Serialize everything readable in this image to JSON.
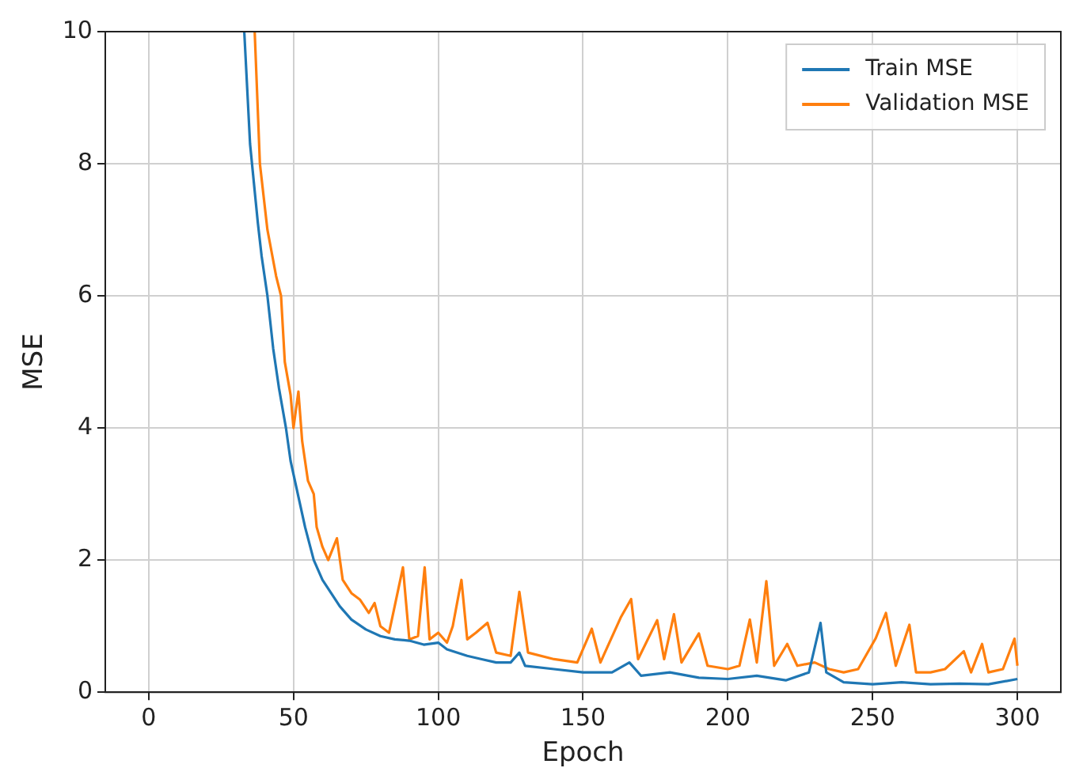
{
  "chart_data": {
    "type": "line",
    "xlabel": "Epoch",
    "ylabel": "MSE",
    "xlim": [
      -15,
      315
    ],
    "ylim": [
      0,
      10
    ],
    "xticks": [
      0,
      50,
      100,
      150,
      200,
      250,
      300
    ],
    "yticks": [
      0,
      2,
      4,
      6,
      8,
      10
    ],
    "grid": true,
    "legend": "top right",
    "marker": "none",
    "line_style": "solid",
    "series": [
      {
        "name": "Train MSE",
        "color": "#1f77b4",
        "x": [
          33,
          35,
          37.7,
          39,
          41,
          43,
          45,
          47.4,
          49,
          51,
          54,
          57,
          60,
          63,
          66,
          70,
          75,
          80,
          85,
          90,
          95,
          100,
          103,
          110,
          115,
          120,
          125,
          128,
          130,
          140,
          150,
          160,
          166,
          170,
          180,
          190,
          200,
          210,
          220,
          228,
          232,
          234,
          240,
          250,
          260,
          270,
          280,
          290,
          300
        ],
        "values": [
          10,
          8.3,
          7.1,
          6.6,
          6,
          5.2,
          4.6,
          4,
          3.5,
          3.1,
          2.5,
          2,
          1.7,
          1.5,
          1.3,
          1.1,
          0.95,
          0.85,
          0.8,
          0.78,
          0.72,
          0.75,
          0.65,
          0.55,
          0.5,
          0.45,
          0.45,
          0.6,
          0.4,
          0.35,
          0.3,
          0.3,
          0.45,
          0.25,
          0.3,
          0.22,
          0.2,
          0.25,
          0.18,
          0.3,
          1.05,
          0.3,
          0.15,
          0.12,
          0.15,
          0.12,
          0.13,
          0.12,
          0.2
        ]
      },
      {
        "name": "Validation MSE",
        "color": "#ff7f0e",
        "x": [
          36.6,
          38.4,
          41,
          44,
          45.7,
          47,
          49,
          50,
          51.7,
          53,
          55,
          57,
          58,
          60,
          62,
          65,
          67,
          70,
          73,
          76,
          78,
          80,
          83,
          87.8,
          90,
          93,
          95.3,
          97,
          100,
          103,
          105,
          108,
          110,
          113,
          117,
          120,
          125,
          128,
          131,
          140,
          148,
          153,
          156,
          163,
          166.6,
          169,
          175.6,
          178,
          181.4,
          184,
          190,
          193,
          200,
          204,
          207.6,
          210,
          213.3,
          216,
          220.5,
          224,
          230,
          235,
          240,
          245,
          251,
          254.6,
          258,
          262.7,
          265,
          270,
          275,
          281.5,
          284,
          287.8,
          290,
          295,
          299,
          300
        ],
        "values": [
          10,
          8,
          7,
          6.3,
          6,
          5,
          4.5,
          4,
          4.55,
          3.8,
          3.2,
          3,
          2.5,
          2.2,
          2,
          2.33,
          1.7,
          1.5,
          1.4,
          1.2,
          1.35,
          1,
          0.9,
          1.89,
          0.8,
          0.85,
          1.89,
          0.8,
          0.9,
          0.75,
          1,
          1.7,
          0.8,
          0.9,
          1.05,
          0.6,
          0.55,
          1.52,
          0.6,
          0.5,
          0.45,
          0.96,
          0.45,
          1.13,
          1.41,
          0.5,
          1.09,
          0.5,
          1.18,
          0.45,
          0.89,
          0.4,
          0.35,
          0.4,
          1.1,
          0.45,
          1.68,
          0.4,
          0.73,
          0.4,
          0.45,
          0.35,
          0.3,
          0.35,
          0.81,
          1.2,
          0.4,
          1.02,
          0.3,
          0.3,
          0.35,
          0.62,
          0.3,
          0.73,
          0.3,
          0.35,
          0.81,
          0.4
        ]
      }
    ]
  }
}
